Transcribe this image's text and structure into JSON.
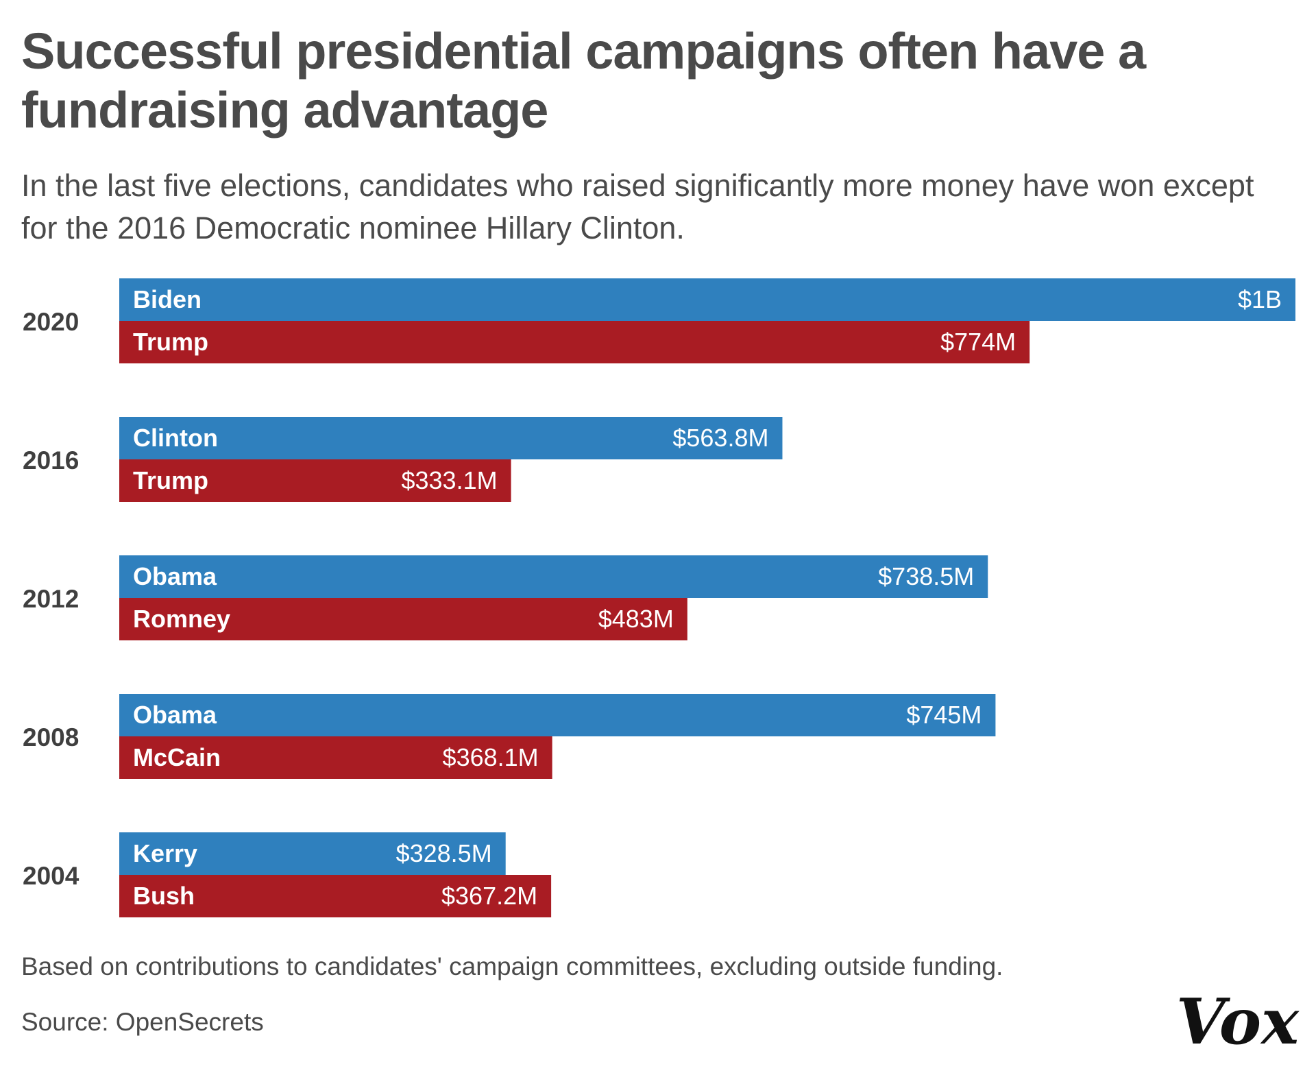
{
  "header": {
    "title": "Successful presidential campaigns often have a fundraising advantage",
    "subtitle": "In the last five elections, candidates who raised significantly more money have won except for the 2016 Democratic nominee Hillary Clinton."
  },
  "footer": {
    "note": "Based on contributions to candidates' campaign committees, excluding outside funding.",
    "source": "Source: OpenSecrets",
    "logo": "Vox"
  },
  "colors": {
    "democrat": "#2f80be",
    "republican": "#a91c23",
    "text": "#4a4a4a"
  },
  "chart_data": {
    "type": "bar",
    "orientation": "horizontal",
    "title": "Successful presidential campaigns often have a fundraising advantage",
    "xlabel": "",
    "ylabel": "",
    "unit": "millions of USD",
    "xlim": [
      0,
      1000
    ],
    "grid": false,
    "groups": [
      {
        "year": "2020",
        "bars": [
          {
            "party": "democrat",
            "name": "Biden",
            "value": 1000,
            "label": "$1B"
          },
          {
            "party": "republican",
            "name": "Trump",
            "value": 774,
            "label": "$774M"
          }
        ]
      },
      {
        "year": "2016",
        "bars": [
          {
            "party": "democrat",
            "name": "Clinton",
            "value": 563.8,
            "label": "$563.8M"
          },
          {
            "party": "republican",
            "name": "Trump",
            "value": 333.1,
            "label": "$333.1M"
          }
        ]
      },
      {
        "year": "2012",
        "bars": [
          {
            "party": "democrat",
            "name": "Obama",
            "value": 738.5,
            "label": "$738.5M"
          },
          {
            "party": "republican",
            "name": "Romney",
            "value": 483,
            "label": "$483M"
          }
        ]
      },
      {
        "year": "2008",
        "bars": [
          {
            "party": "democrat",
            "name": "Obama",
            "value": 745,
            "label": "$745M"
          },
          {
            "party": "republican",
            "name": "McCain",
            "value": 368.1,
            "label": "$368.1M"
          }
        ]
      },
      {
        "year": "2004",
        "bars": [
          {
            "party": "democrat",
            "name": "Kerry",
            "value": 328.5,
            "label": "$328.5M"
          },
          {
            "party": "republican",
            "name": "Bush",
            "value": 367.2,
            "label": "$367.2M"
          }
        ]
      }
    ]
  }
}
